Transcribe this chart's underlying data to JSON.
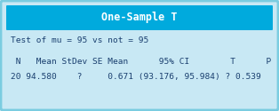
{
  "title": "One-Sample T",
  "title_bg": "#00AADD",
  "title_color": "#FFFFFF",
  "outer_bg": "#C8E8F4",
  "border_color": "#7ACCE0",
  "line1": "Test of mu = 95 vs not = 95",
  "header": " N   Mean StDev SE Mean      95% CI        T      P",
  "data_row": "20 94.580    ?     0.671 (93.176, 95.984) ? 0.539",
  "font_color": "#1A3F6F",
  "mono_font": "monospace",
  "title_fontsize": 8.5,
  "body_fontsize": 6.8
}
